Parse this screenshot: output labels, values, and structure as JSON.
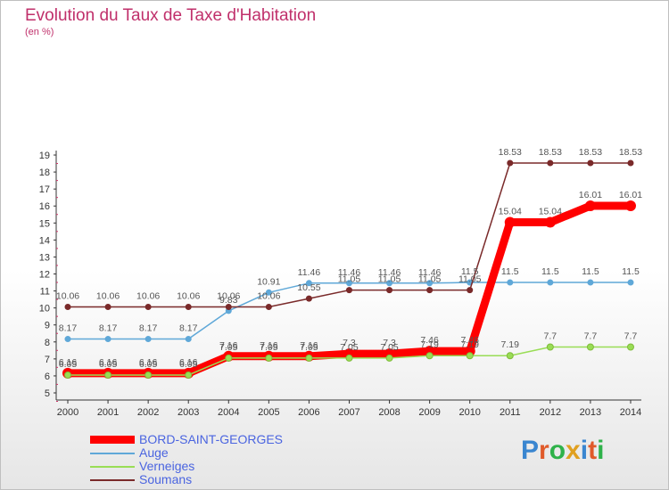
{
  "title": "Evolution du Taux de Taxe d'Habitation",
  "subtitle": "(en %)",
  "logo_text": "Proxiti",
  "chart_data": {
    "type": "line",
    "x": [
      2000,
      2001,
      2002,
      2003,
      2004,
      2005,
      2006,
      2007,
      2008,
      2009,
      2010,
      2011,
      2012,
      2013,
      2014
    ],
    "ylim": [
      5,
      19
    ],
    "yticks": [
      5,
      6,
      7,
      8,
      9,
      10,
      11,
      12,
      13,
      14,
      15,
      16,
      17,
      18,
      19
    ],
    "grid": false,
    "legend_position": "bottom-left",
    "series": [
      {
        "name": "BORD-SAINT-GEORGES",
        "color": "#ff0000",
        "values": [
          6.16,
          6.16,
          6.16,
          6.16,
          7.16,
          7.16,
          7.16,
          7.3,
          7.3,
          7.46,
          7.46,
          15.04,
          15.04,
          16.01,
          16.01
        ],
        "labels": [
          "6.16",
          "6.16",
          "6.16",
          "6.16",
          "7.16",
          "7.16",
          "7.16",
          "7.3",
          "7.3",
          "7.46",
          "7.46",
          "15.04",
          "15.04",
          "16.01",
          "16.01"
        ],
        "label_flags": [
          1,
          1,
          1,
          1,
          1,
          1,
          1,
          1,
          1,
          1,
          1,
          1,
          1,
          1,
          1
        ]
      },
      {
        "name": "Auge",
        "color": "#5fa8d8",
        "values": [
          8.17,
          8.17,
          8.17,
          8.17,
          9.83,
          10.91,
          11.46,
          11.46,
          11.46,
          11.46,
          11.5,
          11.5,
          11.5,
          11.5,
          11.5
        ],
        "labels": [
          "8.17",
          "8.17",
          "8.17",
          "8.17",
          "9.83",
          "10.91",
          "11.46",
          "11.46",
          "11.46",
          "11.46",
          "11.5",
          "11.5",
          "11.5",
          "11.5",
          "11.5"
        ],
        "label_flags": [
          1,
          1,
          1,
          1,
          1,
          1,
          1,
          1,
          1,
          1,
          1,
          1,
          1,
          1,
          1
        ]
      },
      {
        "name": "Verneiges",
        "color": "#99dd55",
        "values": [
          6.05,
          6.05,
          6.05,
          6.05,
          7.05,
          7.05,
          7.05,
          7.05,
          7.05,
          7.19,
          7.19,
          7.19,
          7.7,
          7.7,
          7.7
        ],
        "labels": [
          "6.05",
          "6.05",
          "6.05",
          "6.05",
          "7.05",
          "7.05",
          "7.05",
          "7.05",
          "7.05",
          "7.19",
          "7.19",
          "7.19",
          "7.7",
          "7.7",
          "7.7"
        ],
        "label_flags": [
          1,
          1,
          1,
          1,
          1,
          1,
          1,
          1,
          1,
          1,
          1,
          1,
          1,
          1,
          1
        ]
      },
      {
        "name": "Soumans",
        "color": "#7a2a2a",
        "values": [
          10.06,
          10.06,
          10.06,
          10.06,
          10.06,
          10.06,
          10.55,
          11.05,
          11.05,
          11.05,
          11.05,
          18.53,
          18.53,
          18.53,
          18.53
        ],
        "labels": [
          "10.06",
          "10.06",
          "10.06",
          "10.06",
          "10.06",
          "10.06",
          "10.55",
          "11.05",
          "11.05",
          "11.05",
          "11.05",
          "18.53",
          "18.53",
          "18.53",
          "18.53"
        ],
        "label_flags": [
          1,
          1,
          1,
          1,
          1,
          1,
          1,
          1,
          1,
          1,
          1,
          1,
          1,
          1,
          1
        ]
      }
    ]
  }
}
